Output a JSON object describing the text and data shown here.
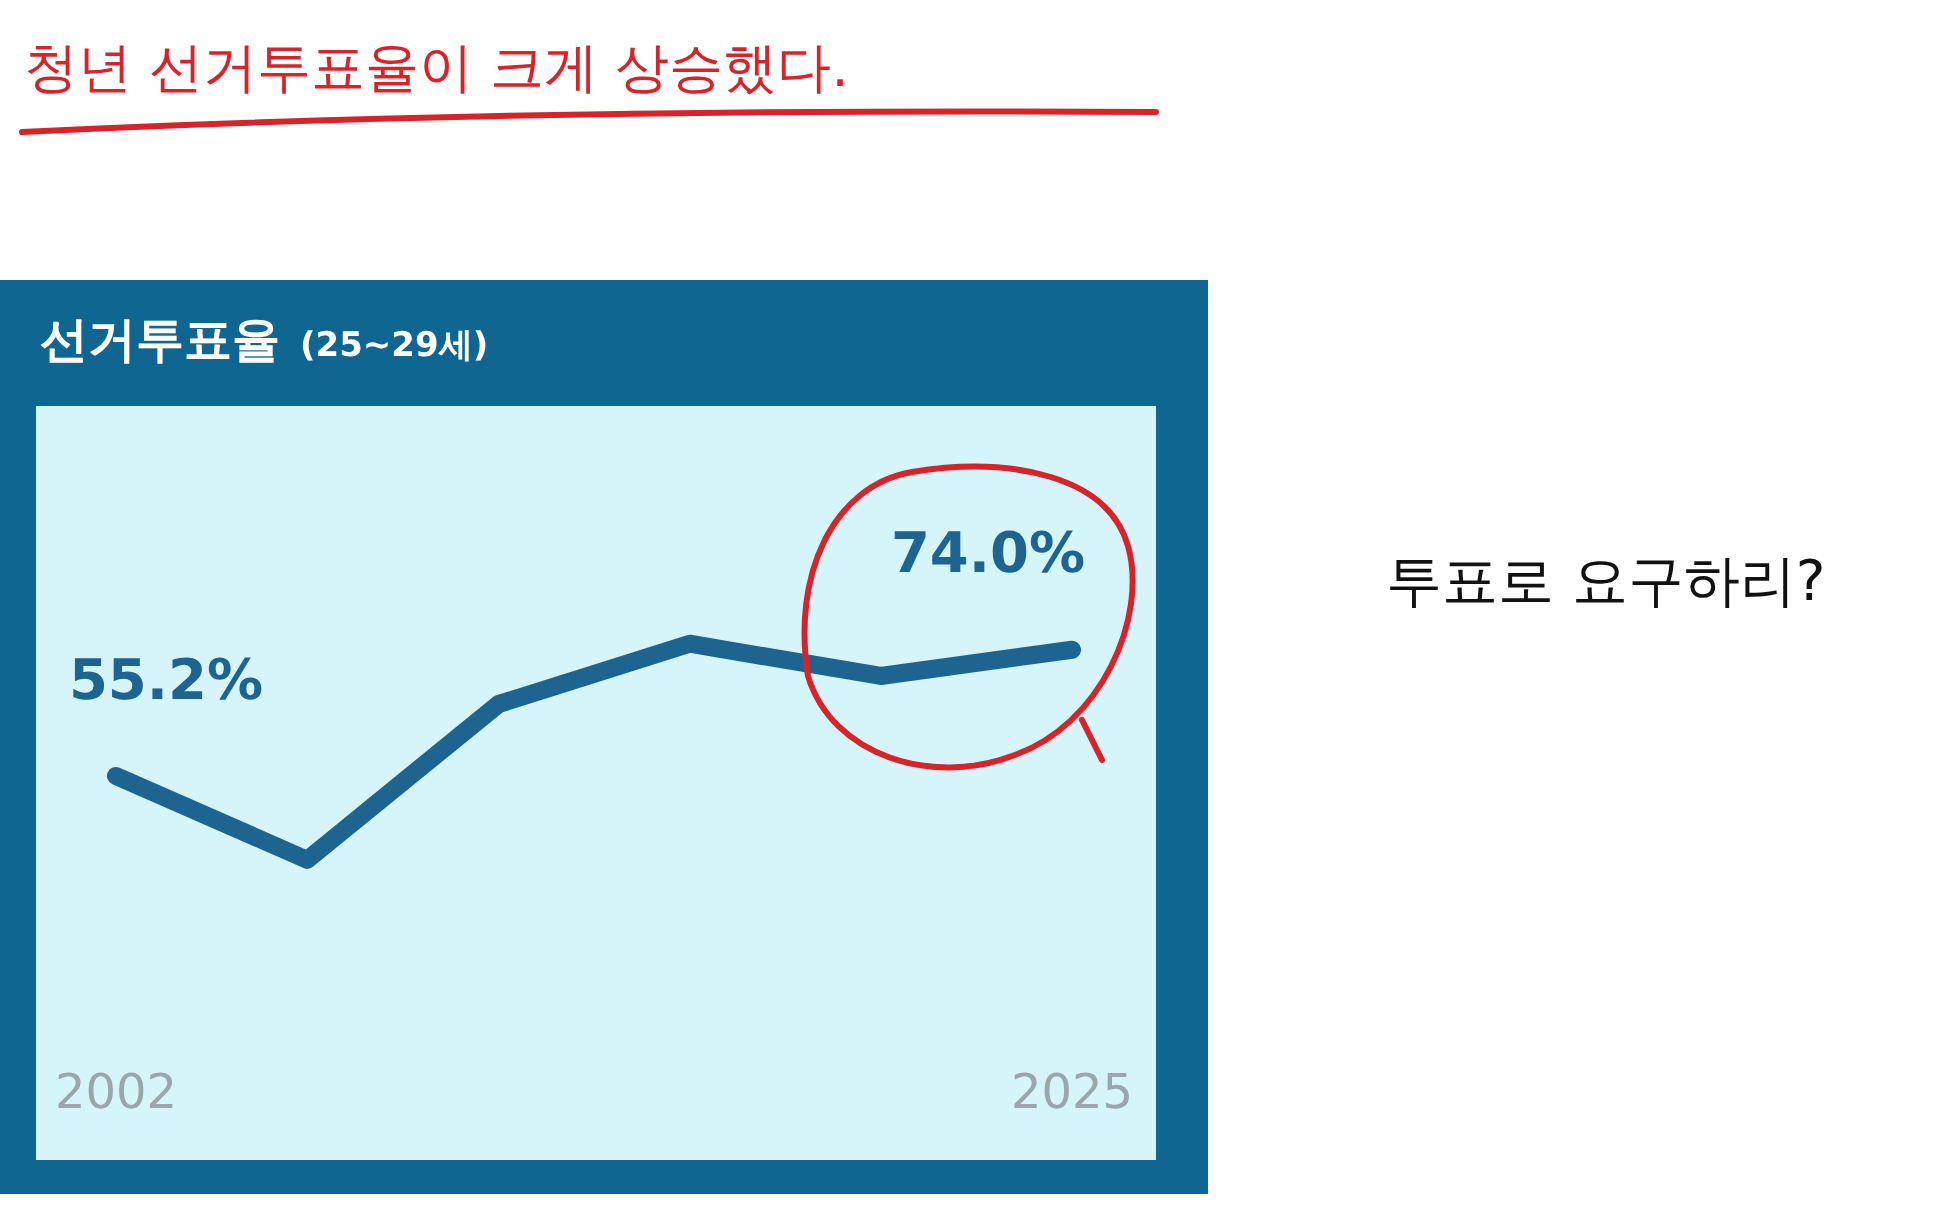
{
  "chart_data": {
    "type": "line",
    "title": "선거투표율",
    "subtitle": "(25~29세)",
    "categories": [
      "2002",
      null,
      null,
      null,
      null,
      "2025"
    ],
    "values": [
      55.2,
      42.7,
      65.9,
      74.9,
      70.1,
      74.0
    ],
    "value_labels": [
      "55.2%",
      null,
      null,
      null,
      null,
      "74.0%"
    ],
    "color": "#1d6590",
    "tick_labels": "x",
    "grid": false,
    "legend": false,
    "annotations": [
      "청년 선거투표율이 크게 상승했다.",
      "투표로 요구하리?"
    ]
  }
}
